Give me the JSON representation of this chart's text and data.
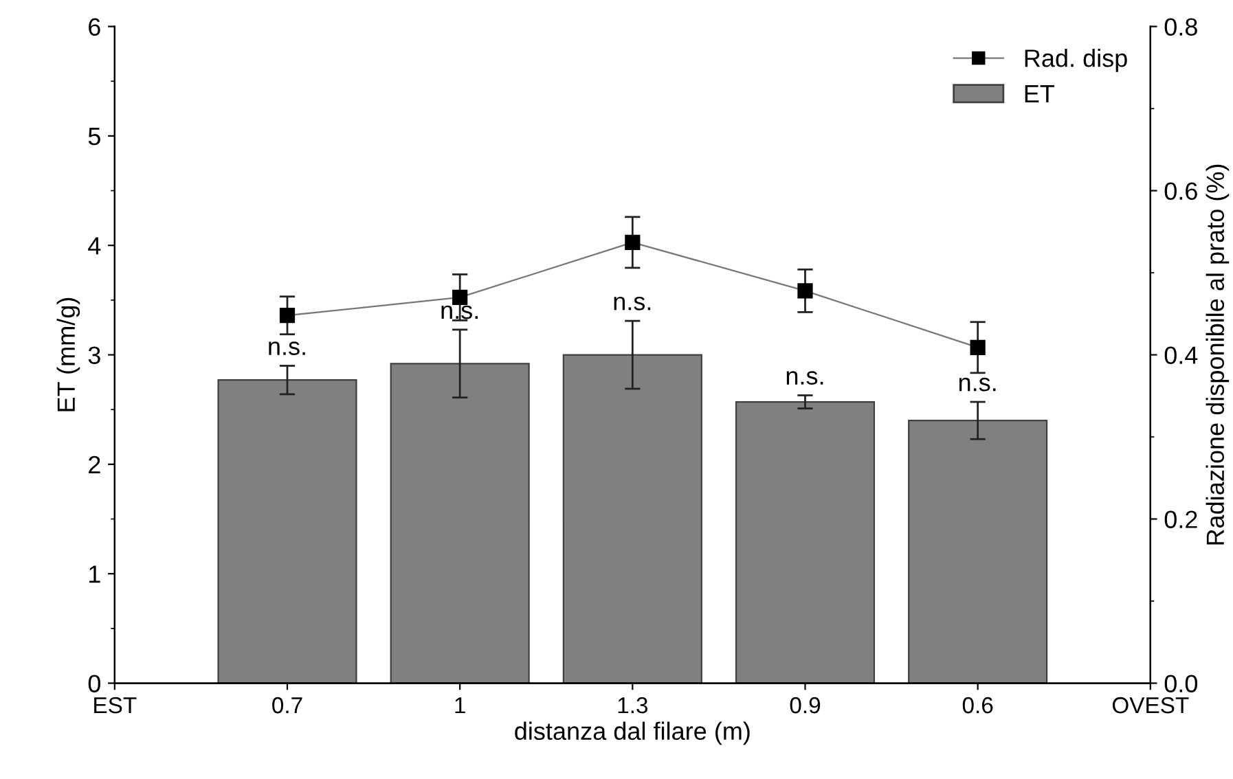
{
  "chart_data": {
    "type": "bar",
    "xlabel": "distanza dal filare (m)",
    "ylabel": "ET (mm/g)",
    "y2label": "Radiazione disponibile al prato (%)",
    "categories": [
      "EST",
      "0.7",
      "1",
      "1.3",
      "0.9",
      "0.6",
      "OVEST"
    ],
    "series": [
      {
        "name": "ET",
        "color": "#808080",
        "values": [
          null,
          2.77,
          2.92,
          3.0,
          2.57,
          2.4,
          null
        ],
        "errors": [
          null,
          0.13,
          0.31,
          0.31,
          0.06,
          0.17,
          null
        ]
      },
      {
        "name": "Rad. disp",
        "type": "line",
        "axis": "y2",
        "color": "#000000",
        "marker": "square",
        "line_style": "solid",
        "values": [
          null,
          0.448,
          0.47,
          0.537,
          0.478,
          0.409,
          null
        ],
        "errors": [
          null,
          0.023,
          0.028,
          0.031,
          0.026,
          0.031,
          null
        ]
      }
    ],
    "ylim": [
      0,
      6
    ],
    "yticks": [
      0,
      {
        "value": 0.5,
        "label": null
      },
      1,
      {
        "value": 1.5,
        "label": null
      },
      2,
      {
        "value": 2.5,
        "label": null
      },
      3,
      {
        "value": 3.5,
        "label": null
      },
      4,
      {
        "value": 4.5,
        "label": null
      },
      5,
      {
        "value": 5.5,
        "label": null
      },
      6
    ],
    "y2lim": [
      0,
      0.8
    ],
    "y2ticks": [
      {
        "value": 0,
        "label": "0.0"
      },
      {
        "value": 0.1,
        "label": null
      },
      {
        "value": 0.2,
        "label": "0.2"
      },
      {
        "value": 0.3,
        "label": null
      },
      {
        "value": 0.4,
        "label": "0.4"
      },
      {
        "value": 0.5,
        "label": null
      },
      {
        "value": 0.6,
        "label": "0.6"
      },
      {
        "value": 0.7,
        "label": null
      },
      {
        "value": 0.8,
        "label": "0.8"
      }
    ],
    "annotations": [
      "n.s.",
      "n.s.",
      "n.s.",
      "n.s.",
      "n.s."
    ],
    "legend": "top right",
    "grid": false
  }
}
